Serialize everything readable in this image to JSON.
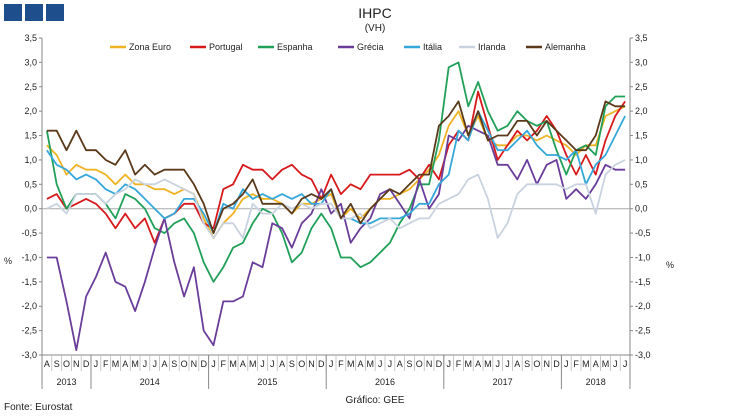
{
  "title": "IHPC",
  "subtitle": "(VH)",
  "source": "Fonte: Eurostat",
  "credit": "Gráfico: GEE",
  "logo": [
    "logo-square",
    "logo-square",
    "logo-square"
  ],
  "chart_data": {
    "type": "line",
    "ylabel_left": "%",
    "ylabel_right": "%",
    "ylim": [
      -3.0,
      3.5
    ],
    "yticks": [
      "3,5",
      "3,0",
      "2,5",
      "2,0",
      "1,5",
      "1,0",
      "0,5",
      "0,0",
      "-0,5",
      "-1,0",
      "-1,5",
      "-2,0",
      "-2,5",
      "-3,0"
    ],
    "ytick_values": [
      3.5,
      3.0,
      2.5,
      2.0,
      1.5,
      1.0,
      0.5,
      0.0,
      -0.5,
      -1.0,
      -1.5,
      -2.0,
      -2.5,
      -3.0
    ],
    "month_labels": [
      "A",
      "S",
      "O",
      "N",
      "D",
      "J",
      "F",
      "M",
      "A",
      "M",
      "J",
      "J",
      "A",
      "S",
      "O",
      "N",
      "D",
      "J",
      "F",
      "M",
      "A",
      "M",
      "J",
      "J",
      "A",
      "S",
      "O",
      "N",
      "D",
      "J",
      "F",
      "M",
      "A",
      "M",
      "J",
      "J",
      "A",
      "S",
      "O",
      "N",
      "D",
      "J",
      "F",
      "M",
      "A",
      "M",
      "J",
      "J",
      "A",
      "S",
      "O",
      "N",
      "D",
      "J",
      "F",
      "M",
      "A",
      "M",
      "J",
      "J"
    ],
    "years": [
      {
        "label": "2013",
        "start": 0,
        "end": 5
      },
      {
        "label": "2014",
        "start": 5,
        "end": 17
      },
      {
        "label": "2015",
        "start": 17,
        "end": 29
      },
      {
        "label": "2016",
        "start": 29,
        "end": 41
      },
      {
        "label": "2017",
        "start": 41,
        "end": 53
      },
      {
        "label": "2018",
        "start": 53,
        "end": 60
      }
    ],
    "series": [
      {
        "name": "Zona Euro",
        "color": "#f0b323",
        "values": [
          1.3,
          1.1,
          0.7,
          0.9,
          0.8,
          0.8,
          0.7,
          0.5,
          0.7,
          0.5,
          0.5,
          0.4,
          0.4,
          0.3,
          0.4,
          0.3,
          -0.2,
          -0.6,
          -0.3,
          -0.1,
          0.2,
          0.3,
          0.2,
          0.2,
          0.1,
          -0.1,
          0.1,
          0.1,
          0.2,
          0.3,
          -0.2,
          0.0,
          -0.2,
          0.0,
          0.2,
          0.2,
          0.3,
          0.4,
          0.6,
          0.8,
          1.1,
          1.7,
          2.0,
          1.5,
          1.9,
          1.4,
          1.3,
          1.3,
          1.5,
          1.5,
          1.4,
          1.5,
          1.4,
          1.3,
          1.1,
          1.3,
          1.3,
          1.9,
          2.0,
          2.1
        ]
      },
      {
        "name": "Portugal",
        "color": "#d7191c",
        "values": [
          0.2,
          0.3,
          0.0,
          0.1,
          0.2,
          0.1,
          -0.1,
          -0.4,
          -0.1,
          -0.4,
          -0.2,
          -0.7,
          -0.2,
          -0.1,
          0.1,
          0.1,
          -0.3,
          -0.4,
          0.4,
          0.5,
          0.9,
          0.8,
          0.8,
          0.6,
          0.8,
          0.9,
          0.7,
          0.6,
          0.2,
          0.7,
          0.3,
          0.5,
          0.4,
          0.7,
          0.7,
          0.7,
          0.7,
          0.8,
          0.6,
          0.9,
          0.6,
          1.3,
          1.6,
          1.4,
          2.4,
          1.7,
          1.0,
          1.3,
          1.6,
          1.4,
          1.6,
          1.9,
          1.6,
          1.1,
          0.7,
          1.1,
          0.7,
          1.4,
          1.9,
          2.2
        ]
      },
      {
        "name": "Espanha",
        "color": "#22a05a",
        "values": [
          1.6,
          0.5,
          0.0,
          0.3,
          0.3,
          0.3,
          0.1,
          -0.2,
          0.3,
          0.2,
          0.0,
          -0.4,
          -0.5,
          -0.3,
          -0.2,
          -0.5,
          -1.1,
          -1.5,
          -1.2,
          -0.8,
          -0.7,
          -0.3,
          0.0,
          -0.1,
          -0.5,
          -1.1,
          -0.9,
          -0.4,
          -0.1,
          -0.4,
          -1.0,
          -1.0,
          -1.2,
          -1.1,
          -0.9,
          -0.7,
          -0.3,
          0.0,
          0.5,
          0.5,
          1.4,
          2.9,
          3.0,
          2.1,
          2.6,
          2.0,
          1.6,
          1.7,
          2.0,
          1.8,
          1.7,
          1.8,
          1.2,
          0.7,
          1.2,
          1.3,
          1.1,
          2.1,
          2.3,
          2.3
        ]
      },
      {
        "name": "Grécia",
        "color": "#6a3d9a",
        "values": [
          -1.0,
          -1.0,
          -1.9,
          -2.9,
          -1.8,
          -1.4,
          -0.9,
          -1.5,
          -1.6,
          -2.1,
          -1.5,
          -0.8,
          -0.2,
          -1.1,
          -1.8,
          -1.2,
          -2.5,
          -2.8,
          -1.9,
          -1.9,
          -1.8,
          -1.1,
          -1.2,
          -0.3,
          -0.4,
          -0.8,
          -0.3,
          -0.1,
          0.4,
          -0.1,
          0.1,
          -0.7,
          -0.4,
          -0.2,
          0.3,
          0.4,
          0.1,
          -0.2,
          0.6,
          0.0,
          0.3,
          1.5,
          1.4,
          1.7,
          1.6,
          1.5,
          0.9,
          0.9,
          0.6,
          1.0,
          0.5,
          0.9,
          1.0,
          0.2,
          0.4,
          0.2,
          0.5,
          0.9,
          0.8,
          0.8
        ]
      },
      {
        "name": "Itália",
        "color": "#35a7d9",
        "values": [
          1.2,
          0.9,
          0.8,
          0.6,
          0.7,
          0.6,
          0.4,
          0.3,
          0.5,
          0.4,
          0.2,
          0.0,
          -0.2,
          -0.1,
          0.2,
          0.2,
          -0.1,
          -0.5,
          0.1,
          0.0,
          0.4,
          0.2,
          0.3,
          0.2,
          0.3,
          0.2,
          0.3,
          0.1,
          0.1,
          0.4,
          -0.2,
          -0.2,
          -0.3,
          -0.3,
          -0.2,
          -0.2,
          -0.2,
          -0.1,
          0.1,
          0.1,
          0.5,
          0.7,
          1.6,
          1.4,
          2.0,
          1.6,
          1.2,
          1.2,
          1.4,
          1.6,
          1.3,
          1.1,
          1.1,
          1.0,
          1.2,
          0.5,
          0.9,
          1.1,
          1.5,
          1.9
        ]
      },
      {
        "name": "Irlanda",
        "color": "#c9d3e0",
        "values": [
          0.0,
          0.1,
          -0.1,
          0.3,
          0.3,
          0.3,
          0.1,
          0.3,
          0.4,
          0.6,
          0.5,
          0.5,
          0.6,
          0.5,
          0.4,
          0.3,
          -0.3,
          -0.6,
          -0.3,
          -0.3,
          -0.6,
          0.1,
          -0.1,
          -0.1,
          0.1,
          0.0,
          0.1,
          0.0,
          0.1,
          0.1,
          -0.2,
          -0.2,
          -0.1,
          -0.4,
          -0.3,
          -0.2,
          -0.4,
          -0.3,
          -0.2,
          -0.2,
          0.1,
          0.2,
          0.3,
          0.6,
          0.7,
          0.2,
          -0.6,
          -0.3,
          0.3,
          0.5,
          0.5,
          0.5,
          0.5,
          0.4,
          0.5,
          0.5,
          -0.1,
          0.7,
          0.9,
          1.0
        ]
      },
      {
        "name": "Alemanha",
        "color": "#5a3a1a",
        "values": [
          1.6,
          1.6,
          1.2,
          1.6,
          1.2,
          1.2,
          1.0,
          0.9,
          1.2,
          0.7,
          0.9,
          0.7,
          0.8,
          0.8,
          0.8,
          0.5,
          0.1,
          -0.5,
          0.0,
          0.1,
          0.3,
          0.6,
          0.1,
          0.1,
          0.1,
          -0.1,
          0.2,
          0.3,
          0.2,
          0.4,
          -0.2,
          0.1,
          -0.3,
          0.0,
          0.2,
          0.4,
          0.3,
          0.5,
          0.7,
          0.7,
          1.7,
          1.9,
          2.2,
          1.5,
          2.0,
          1.4,
          1.5,
          1.5,
          1.8,
          1.8,
          1.5,
          1.8,
          1.6,
          1.4,
          1.2,
          1.2,
          1.5,
          2.2,
          2.1,
          2.1
        ]
      }
    ]
  }
}
